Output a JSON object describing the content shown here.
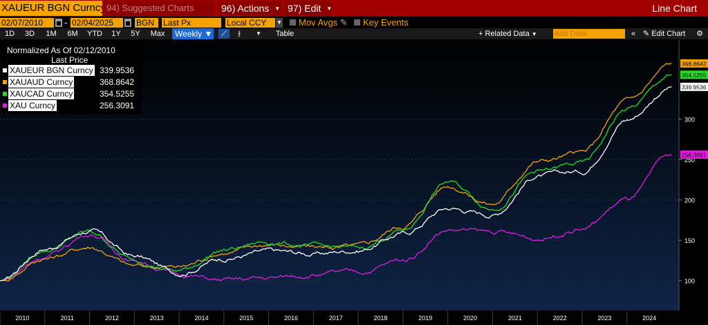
{
  "colors": {
    "title_bar": "#a00000",
    "amber": "#f5a300",
    "active_blue": "#1d6bd6",
    "plot_bg_top": "#000000",
    "plot_bg_bottom": "#0e2447"
  },
  "header": {
    "ticker": "XAUEUR BGN Curncy",
    "suggested": "94) Suggested Charts",
    "actions": "96) Actions",
    "edit": "97) Edit",
    "window_title": "Line Chart"
  },
  "params": {
    "start_date": "02/07/2010",
    "end_date": "02/04/2025",
    "source": "BGN",
    "field": "Last Px",
    "currency": "Local CCY",
    "mov_avgs": "Mov Avgs",
    "key_events": "Key Events"
  },
  "toolbar": {
    "periods": [
      "1D",
      "3D",
      "1M",
      "6M",
      "YTD",
      "1Y",
      "5Y",
      "Max"
    ],
    "frequency": "Weekly ▼",
    "table": "Table",
    "related_data": "+ Related Data",
    "add_data_placeholder": "Add Data",
    "edit_chart": "Edit Chart"
  },
  "legend": {
    "title": "Normalized As Of 02/12/2010",
    "subtitle": "Last Price"
  },
  "chart_data": {
    "type": "line",
    "x": [
      "2010",
      "2011",
      "2012",
      "2013",
      "2014",
      "2015",
      "2016",
      "2017",
      "2018",
      "2019",
      "2020",
      "2021",
      "2022",
      "2023",
      "2024",
      "2025"
    ],
    "ylim": [
      63,
      398
    ],
    "y_ticks": [
      100,
      150,
      200,
      250,
      300
    ],
    "x_tick_labels": [
      "2010",
      "2011",
      "2012",
      "2013",
      "2014",
      "2015",
      "2016",
      "2017",
      "2018",
      "2019",
      "2020",
      "2021",
      "2022",
      "2023",
      "2024"
    ],
    "series": [
      {
        "name": "XAUEUR BGN Curncy",
        "last": "339.9536",
        "color": "#ffffff",
        "values": [
          100,
          140,
          162,
          130,
          110,
          128,
          136,
          133,
          138,
          158,
          190,
          182,
          230,
          235,
          300,
          340
        ]
      },
      {
        "name": "XAUAUD Curncy",
        "last": "368.8642",
        "color": "#f5a300",
        "values": [
          100,
          128,
          142,
          118,
          117,
          135,
          145,
          141,
          142,
          168,
          218,
          195,
          248,
          258,
          322,
          369
        ]
      },
      {
        "name": "XAUCAD Curncy",
        "last": "354.5255",
        "color": "#22dd22",
        "values": [
          100,
          138,
          160,
          125,
          112,
          138,
          148,
          142,
          140,
          162,
          222,
          190,
          235,
          245,
          312,
          355
        ]
      },
      {
        "name": "XAU Curncy",
        "last": "256.3091",
        "color": "#e21ce2",
        "values": [
          100,
          130,
          158,
          125,
          108,
          100,
          103,
          108,
          110,
          125,
          163,
          160,
          152,
          165,
          200,
          256
        ]
      }
    ]
  }
}
